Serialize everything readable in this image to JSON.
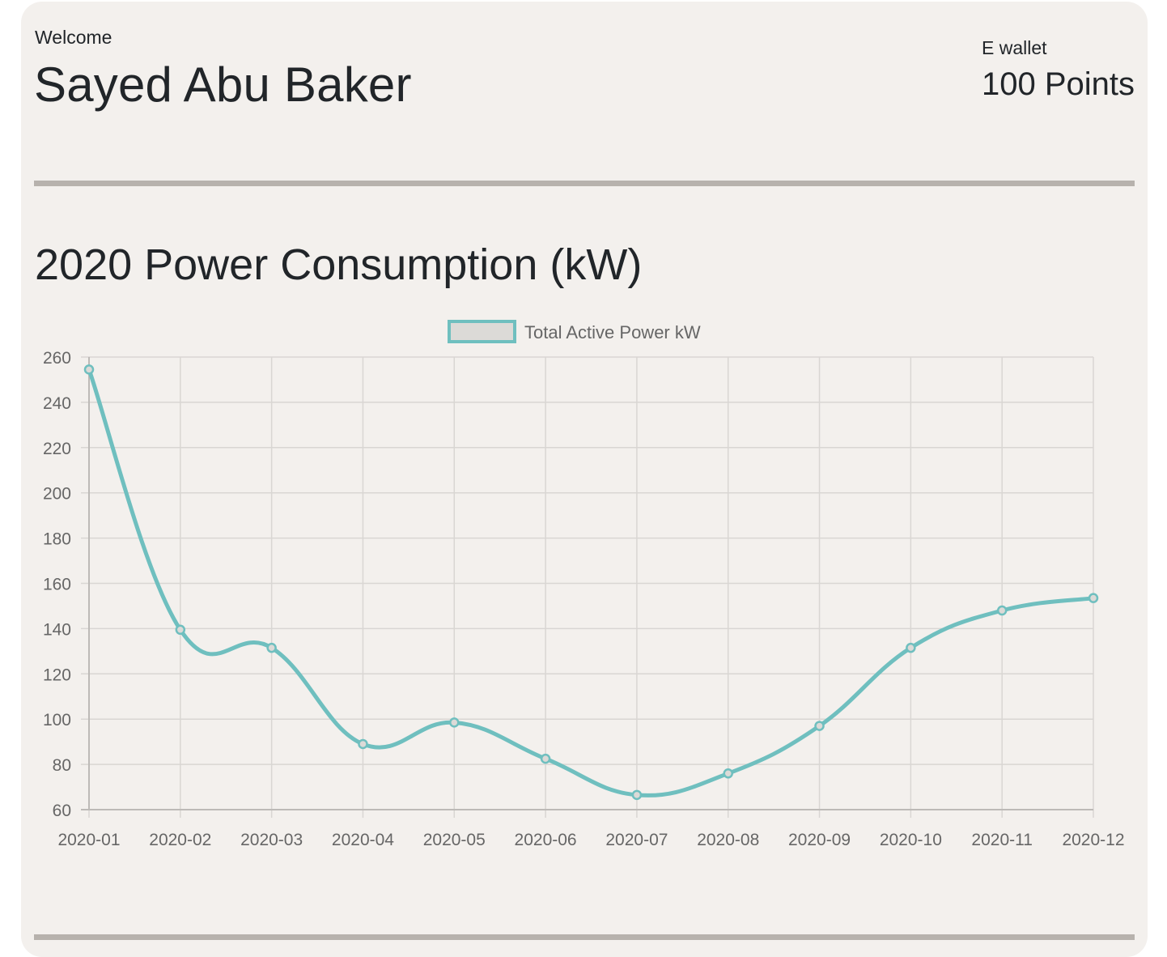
{
  "header": {
    "welcome": "Welcome",
    "user_name": "Sayed Abu Baker",
    "wallet_label": "E wallet",
    "wallet_points": "100 Points"
  },
  "chart_title": "2020 Power Consumption (kW)",
  "colors": {
    "line": "#6fbfbf",
    "legend_fill": "#dcdad7",
    "grid": "#d9d6d3",
    "tick_text": "#666666",
    "divider": "#b7b2ad"
  },
  "chart_data": {
    "type": "line",
    "categories": [
      "2020-01",
      "2020-02",
      "2020-03",
      "2020-04",
      "2020-05",
      "2020-06",
      "2020-07",
      "2020-08",
      "2020-09",
      "2020-10",
      "2020-11",
      "2020-12"
    ],
    "series": [
      {
        "name": "Total Active Power kW",
        "values": [
          254.5,
          139.5,
          131.5,
          89,
          98.5,
          82.5,
          66.5,
          76,
          97,
          131.5,
          148,
          153.5
        ]
      }
    ],
    "ylim": [
      60,
      260
    ],
    "yticks": [
      260,
      240,
      220,
      200,
      180,
      160,
      140,
      120,
      100,
      80,
      60
    ],
    "grid": true,
    "legend_position": "top"
  }
}
